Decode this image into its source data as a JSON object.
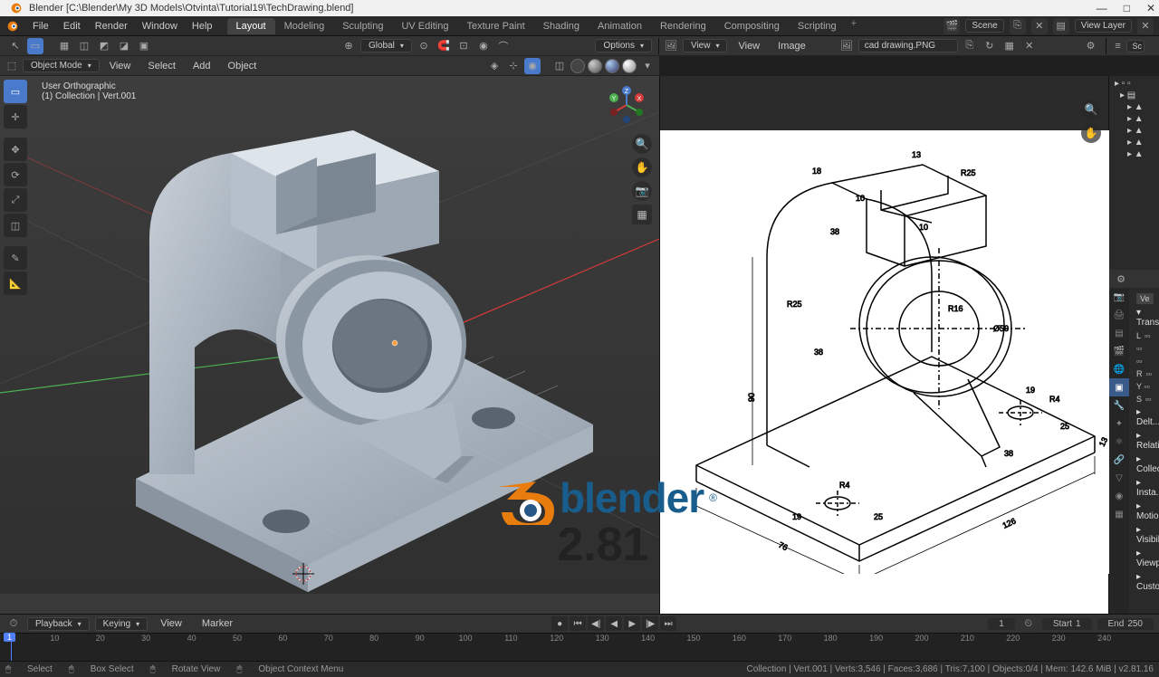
{
  "window": {
    "title": "Blender  [C:\\Blender\\My 3D Models\\Otvinta\\Tutorial19\\TechDrawing.blend]",
    "min": "—",
    "max": "□",
    "close": "✕"
  },
  "menubar": {
    "file": "File",
    "edit": "Edit",
    "render": "Render",
    "window": "Window",
    "help": "Help"
  },
  "workspaces": {
    "layout": "Layout",
    "modeling": "Modeling",
    "sculpting": "Sculpting",
    "uv": "UV Editing",
    "texture": "Texture Paint",
    "shading": "Shading",
    "animation": "Animation",
    "rendering": "Rendering",
    "compositing": "Compositing",
    "scripting": "Scripting",
    "add": "+"
  },
  "header_right": {
    "scene_label": "Scene",
    "viewlayer_label": "View Layer"
  },
  "toolrow1": {
    "orientation": "Global",
    "options": "Options"
  },
  "toolrow2": {
    "mode": "Object Mode",
    "view": "View",
    "select": "Select",
    "add": "Add",
    "object": "Object"
  },
  "viewport": {
    "info_line1": "User Orthographic",
    "info_line2": "(1) Collection | Vert.001"
  },
  "image_editor": {
    "view_dropdown": "View",
    "view_menu": "View",
    "image_menu": "Image",
    "filename": "cad drawing.PNG"
  },
  "outliner": {
    "header": "Sc",
    "r0": "⯈",
    "r1": "⯈",
    "r2": "⯈",
    "r3": "⯈",
    "r4": "⯈"
  },
  "properties": {
    "pin": "Ve",
    "transform": "Transf...",
    "loc": "L",
    "rot": "R",
    "scl": "S",
    "delta": "Delt...",
    "relations": "Relati...",
    "collections": "Collec...",
    "instancing": "Insta...",
    "motion": "Motio...",
    "visibility": "Visibil...",
    "viewport_display": "Viewp...",
    "custom": "Custo..."
  },
  "timeline": {
    "playback": "Playback",
    "keying": "Keying",
    "view": "View",
    "marker": "Marker",
    "current": "1",
    "start_label": "Start",
    "start": "1",
    "end_label": "End",
    "end": "250",
    "ticks": [
      10,
      20,
      30,
      40,
      50,
      60,
      70,
      80,
      90,
      100,
      110,
      120,
      130,
      140,
      150,
      160,
      170,
      180,
      190,
      200,
      210,
      220,
      230,
      240
    ]
  },
  "statusbar": {
    "select": "Select",
    "boxselect": "Box Select",
    "rotate": "Rotate View",
    "menu": "Object Context Menu",
    "stats": "Collection | Vert.001 | Verts:3,546 | Faces:3,686 | Tris:7,100 | Objects:0/4 | Mem: 142.6 MiB | v2.81.16"
  },
  "logo": {
    "text": "blender",
    "version": "2.81",
    "reg": "®"
  },
  "colors": {
    "brand_orange": "#e87d0d",
    "brand_blue": "#185d8b",
    "axis_x": "#d63a3a",
    "axis_y": "#4caf50",
    "axis_z": "#4a7acc"
  },
  "drawing": {
    "dims": [
      "18",
      "13",
      "R25",
      "10",
      "38",
      "10",
      "R25",
      "38",
      "R16",
      "Ø50",
      "19",
      "R4",
      "25",
      "13",
      "90",
      "19",
      "25",
      "38",
      "R4",
      "76",
      "126"
    ]
  }
}
